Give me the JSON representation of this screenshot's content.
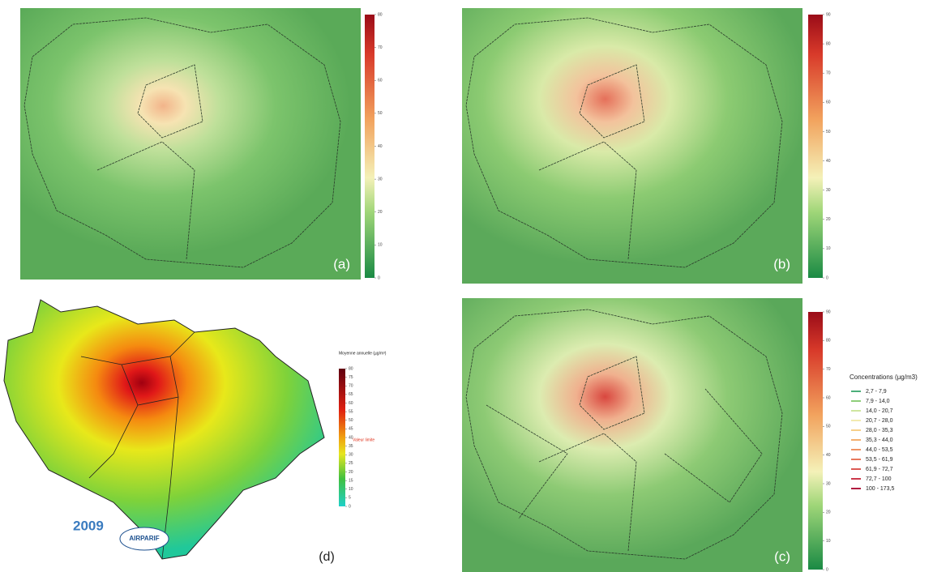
{
  "panels": [
    {
      "label": "(a)",
      "colorbar_ticks": [
        0,
        10,
        20,
        30,
        40,
        50,
        60,
        70,
        80
      ]
    },
    {
      "label": "(b)",
      "colorbar_ticks": [
        0,
        10,
        20,
        30,
        40,
        50,
        60,
        70,
        80,
        90
      ]
    },
    {
      "label": "(c)",
      "colorbar_ticks": [
        0,
        10,
        20,
        30,
        40,
        50,
        60,
        70,
        80,
        90
      ]
    },
    {
      "label": "(d)",
      "year": "2009",
      "colorbar_title": "Moyenne annuelle (µg/m³)",
      "colorbar_ticks": [
        0,
        5,
        10,
        15,
        20,
        25,
        30,
        35,
        40,
        45,
        50,
        55,
        60,
        65,
        70,
        75,
        80
      ],
      "limit_note": "Valeur limite",
      "logo": "AIRPARIF"
    }
  ],
  "legend": {
    "title": "Concentrations (µg/m3)",
    "items": [
      {
        "label": "2,7 - 7,9",
        "color": "#4caf7a"
      },
      {
        "label": "7,9 - 14,0",
        "color": "#8fce7a"
      },
      {
        "label": "14,0 - 20,7",
        "color": "#cfe6a0"
      },
      {
        "label": "20,7 - 28,0",
        "color": "#f2eab0"
      },
      {
        "label": "28,0 - 35,3",
        "color": "#f6d08a"
      },
      {
        "label": "35,3 - 44,0",
        "color": "#f3b070"
      },
      {
        "label": "44,0 - 53,5",
        "color": "#ee9566"
      },
      {
        "label": "53,5 - 61,9",
        "color": "#e7785c"
      },
      {
        "label": "61,9 - 72,7",
        "color": "#dc5a55"
      },
      {
        "label": "72,7 - 100",
        "color": "#cc3a4c"
      },
      {
        "label": "100 - 173,5",
        "color": "#b01c40"
      }
    ]
  }
}
